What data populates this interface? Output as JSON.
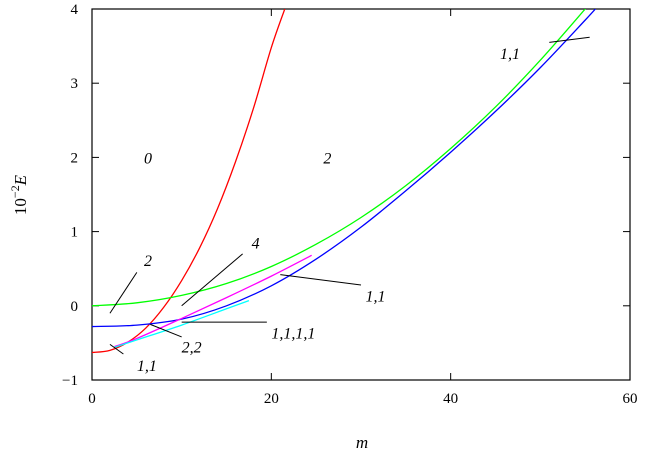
{
  "chart_data": {
    "type": "line",
    "xlabel": "m",
    "ylabel": "10",
    "ylabel_sup": "−2",
    "ylabel_var": "E",
    "xlim": [
      0,
      60
    ],
    "ylim": [
      -1,
      4
    ],
    "xticks": [
      0,
      20,
      40,
      60
    ],
    "yticks": [
      -1,
      0,
      1,
      2,
      3,
      4
    ],
    "xtick_labels": [
      "0",
      "20",
      "40",
      "60"
    ],
    "ytick_labels": [
      "−1",
      "0",
      "1",
      "2",
      "3",
      "4"
    ],
    "grid": false,
    "legend": "none",
    "series": [
      {
        "color": "#ff0000",
        "x": [
          0,
          2,
          4,
          6,
          8,
          10,
          12,
          14,
          16,
          18,
          20,
          21.5
        ],
        "y": [
          -0.63,
          -0.6,
          -0.49,
          -0.3,
          -0.02,
          0.34,
          0.78,
          1.31,
          1.94,
          2.66,
          3.48,
          4.0
        ]
      },
      {
        "color": "#00ff00",
        "x": [
          0,
          5,
          10,
          15,
          20,
          25,
          30,
          35,
          40,
          45,
          50,
          55,
          58.5
        ],
        "y": [
          0.0,
          0.04,
          0.14,
          0.3,
          0.53,
          0.83,
          1.19,
          1.62,
          2.12,
          2.68,
          3.31,
          4.0,
          4.5
        ]
      },
      {
        "color": "#0000ff",
        "x": [
          0,
          5,
          10,
          15,
          20,
          25,
          30,
          35,
          40,
          45,
          50,
          55,
          56.5
        ],
        "y": [
          -0.28,
          -0.26,
          -0.18,
          0.0,
          0.27,
          0.63,
          1.06,
          1.55,
          2.07,
          2.62,
          3.21,
          3.85,
          4.05
        ]
      },
      {
        "color": "#ff00ff",
        "x": [
          2.5,
          5,
          10,
          15,
          20,
          24.5
        ],
        "y": [
          -0.55,
          -0.44,
          -0.17,
          0.11,
          0.4,
          0.68
        ]
      },
      {
        "color": "#00ffff",
        "x": [
          2.5,
          5,
          10,
          15,
          17.5
        ],
        "y": [
          -0.56,
          -0.46,
          -0.26,
          -0.04,
          0.07
        ]
      }
    ],
    "annotations": [
      {
        "text": "0",
        "x": 5.8,
        "y": 2.0,
        "line": null
      },
      {
        "text": "2",
        "x": 25.8,
        "y": 2.0,
        "line": null
      },
      {
        "text": "1,1",
        "x": 45.5,
        "y": 3.41,
        "line": [
          51.0,
          3.55,
          55.5,
          3.62
        ]
      },
      {
        "text": "2",
        "x": 5.8,
        "y": 0.62,
        "line": [
          5.0,
          0.45,
          2.0,
          -0.1
        ]
      },
      {
        "text": "4",
        "x": 17.8,
        "y": 0.85,
        "line": [
          16.8,
          0.7,
          10.0,
          0.0
        ]
      },
      {
        "text": "1,1",
        "x": 30.5,
        "y": 0.14,
        "line": [
          30.0,
          0.28,
          21.0,
          0.42
        ]
      },
      {
        "text": "1,1,1,1",
        "x": 20.0,
        "y": -0.36,
        "line": [
          19.5,
          -0.22,
          10.0,
          -0.22
        ]
      },
      {
        "text": "2,2",
        "x": 10.0,
        "y": -0.55,
        "line": [
          10.0,
          -0.42,
          6.5,
          -0.25
        ]
      },
      {
        "text": "1,1",
        "x": 5.0,
        "y": -0.8,
        "line": [
          3.5,
          -0.65,
          2.0,
          -0.52
        ]
      }
    ]
  }
}
